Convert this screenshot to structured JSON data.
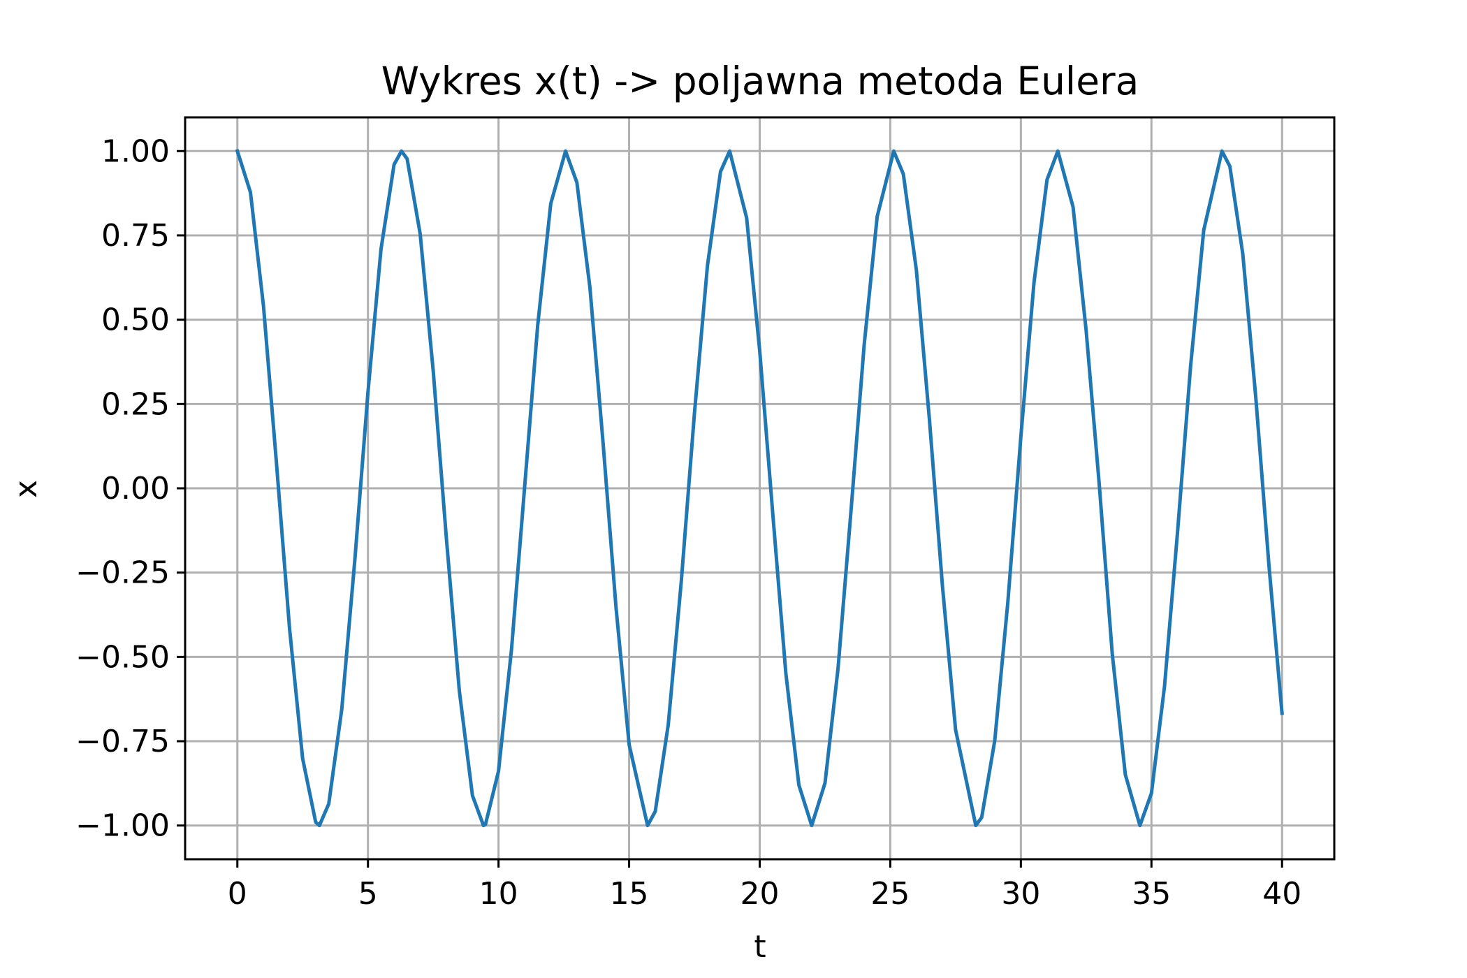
{
  "chart_data": {
    "type": "line",
    "title": "Wykres x(t) -> poljawna metoda Eulera",
    "xlabel": "t",
    "ylabel": "x",
    "xlim": [
      -2,
      42
    ],
    "ylim": [
      -1.1,
      1.1
    ],
    "xticks": [
      0,
      5,
      10,
      15,
      20,
      25,
      30,
      35,
      40
    ],
    "xtick_labels": [
      "0",
      "5",
      "10",
      "15",
      "20",
      "25",
      "30",
      "35",
      "40"
    ],
    "yticks": [
      1.0,
      0.75,
      0.5,
      0.25,
      0.0,
      -0.25,
      -0.5,
      -0.75,
      -1.0
    ],
    "ytick_labels": [
      "1.00",
      "0.75",
      "0.50",
      "0.25",
      "0.00",
      "−0.25",
      "−0.50",
      "−0.75",
      "−1.00"
    ],
    "grid": true,
    "series": [
      {
        "color": "#1f77b4",
        "x": [
          0,
          0.5,
          1.0,
          1.5,
          2.0,
          2.5,
          3.0,
          3.1416,
          3.5,
          4.0,
          4.5,
          5.0,
          5.5,
          6.0,
          6.2832,
          6.5,
          7.0,
          7.5,
          8.0,
          8.5,
          9.0,
          9.4248,
          9.5,
          10.0,
          10.5,
          11.0,
          11.5,
          12.0,
          12.5664,
          13.0,
          13.5,
          14.0,
          14.5,
          15.0,
          15.708,
          16.0,
          16.5,
          17.0,
          17.5,
          18.0,
          18.5,
          18.8496,
          19.5,
          20.0,
          20.5,
          21.0,
          21.5,
          21.9911,
          22.5,
          23.0,
          23.5,
          24.0,
          24.5,
          25.1327,
          25.5,
          26.0,
          26.5,
          27.0,
          27.5,
          28.2743,
          28.5,
          29.0,
          29.5,
          30.0,
          30.5,
          31.0,
          31.4159,
          32.0,
          32.5,
          33.0,
          33.5,
          34.0,
          34.5575,
          35.0,
          35.5,
          36.0,
          36.5,
          37.0,
          37.6991,
          38.0,
          38.5,
          39.0,
          39.5,
          40.0
        ],
        "y": [
          1.0,
          0.878,
          0.54,
          0.071,
          -0.416,
          -0.801,
          -0.99,
          -1.0,
          -0.936,
          -0.654,
          -0.211,
          0.284,
          0.709,
          0.96,
          1.0,
          0.977,
          0.754,
          0.347,
          -0.146,
          -0.602,
          -0.911,
          -1.0,
          -0.997,
          -0.839,
          -0.476,
          0.004,
          0.483,
          0.844,
          1.0,
          0.907,
          0.595,
          0.137,
          -0.355,
          -0.76,
          -1.0,
          -0.958,
          -0.701,
          -0.275,
          0.22,
          0.66,
          0.939,
          1.0,
          0.802,
          0.408,
          -0.075,
          -0.548,
          -0.88,
          -1.0,
          -0.874,
          -0.533,
          -0.062,
          0.424,
          0.806,
          1.0,
          0.932,
          0.647,
          0.203,
          -0.292,
          -0.716,
          -1.0,
          -0.976,
          -0.748,
          -0.338,
          0.154,
          0.609,
          0.915,
          1.0,
          0.834,
          0.468,
          0.013,
          -0.491,
          -0.849,
          -1.0,
          -0.904,
          -0.587,
          -0.128,
          0.364,
          0.765,
          1.0,
          0.955,
          0.694,
          0.266,
          -0.229,
          -0.667
        ]
      }
    ]
  }
}
